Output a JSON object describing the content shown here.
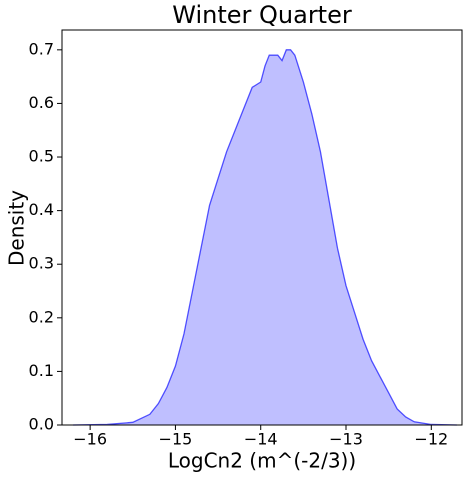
{
  "chart_data": {
    "type": "area",
    "title": "Winter Quarter",
    "x_label": "LogCn2 (m^(-2/3))",
    "y_label": "Density",
    "color": "#0000ff",
    "x": [
      -16.2,
      -15.8,
      -15.5,
      -15.3,
      -15.2,
      -15.1,
      -15.0,
      -14.9,
      -14.8,
      -14.7,
      -14.6,
      -14.5,
      -14.4,
      -14.3,
      -14.2,
      -14.1,
      -14.0,
      -13.95,
      -13.9,
      -13.85,
      -13.8,
      -13.75,
      -13.7,
      -13.65,
      -13.6,
      -13.5,
      -13.4,
      -13.3,
      -13.2,
      -13.1,
      -13.0,
      -12.9,
      -12.8,
      -12.7,
      -12.6,
      -12.5,
      -12.4,
      -12.3,
      -12.2,
      -12.0,
      -11.7
    ],
    "values": [
      0,
      0.001,
      0.005,
      0.02,
      0.04,
      0.07,
      0.11,
      0.17,
      0.25,
      0.33,
      0.41,
      0.46,
      0.51,
      0.55,
      0.59,
      0.63,
      0.64,
      0.67,
      0.69,
      0.69,
      0.69,
      0.68,
      0.7,
      0.7,
      0.69,
      0.64,
      0.58,
      0.51,
      0.42,
      0.33,
      0.26,
      0.21,
      0.16,
      0.12,
      0.09,
      0.06,
      0.03,
      0.015,
      0.006,
      0.001,
      0
    ],
    "xlim": [
      -16.33,
      -11.64
    ],
    "xticks": [
      {
        "value": -16,
        "label": "−16"
      },
      {
        "value": -15,
        "label": "−15"
      },
      {
        "value": -14,
        "label": "−14"
      },
      {
        "value": -13,
        "label": "−13"
      },
      {
        "value": -12,
        "label": "−12"
      }
    ],
    "ylim": [
      0,
      0.737
    ],
    "yticks": [
      {
        "value": 0,
        "label": "0.0"
      },
      0.1,
      0.2,
      0.3,
      0.4,
      0.5,
      0.6,
      0.7
    ]
  }
}
